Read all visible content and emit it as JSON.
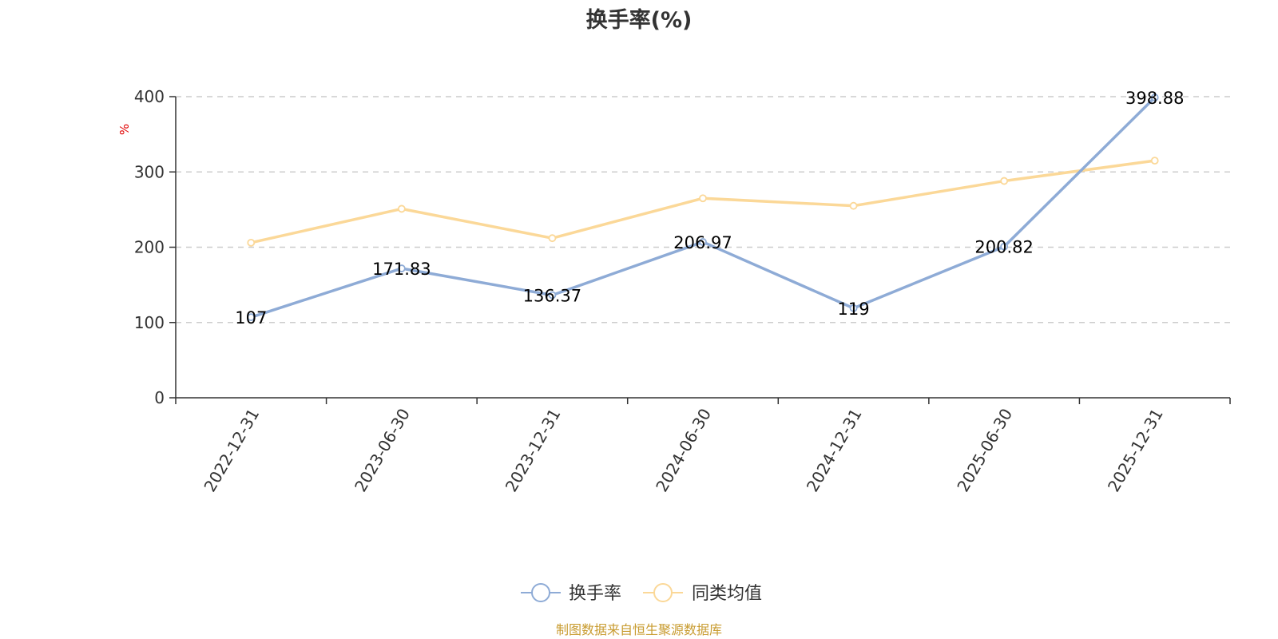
{
  "chart_data": {
    "type": "line",
    "title": "换手率(%)",
    "ylabel": "%",
    "xlabel": "",
    "ylim": [
      0,
      400
    ],
    "yticks": [
      0,
      100,
      200,
      300,
      400
    ],
    "categories": [
      "2022-12-31",
      "2023-06-30",
      "2023-12-31",
      "2024-06-30",
      "2024-12-31",
      "2025-06-30",
      "2025-12-31"
    ],
    "series": [
      {
        "name": "换手率",
        "values": [
          107,
          171.83,
          136.37,
          206.97,
          119,
          200.82,
          398.88
        ],
        "labels": [
          "107",
          "171.83",
          "136.37",
          "206.97",
          "119",
          "200.82",
          "398.88"
        ],
        "color": "#8eabd6"
      },
      {
        "name": "同类均值",
        "values": [
          206,
          251,
          212,
          265,
          255,
          288,
          315
        ],
        "color": "#fbd898"
      }
    ],
    "grid": true,
    "legend_position": "bottom-center"
  },
  "source": "制图数据来自恒生聚源数据库",
  "colors": {
    "axis": "#333333",
    "grid": "#cccccc",
    "unit": "#e00000",
    "source": "#c89b2f"
  }
}
